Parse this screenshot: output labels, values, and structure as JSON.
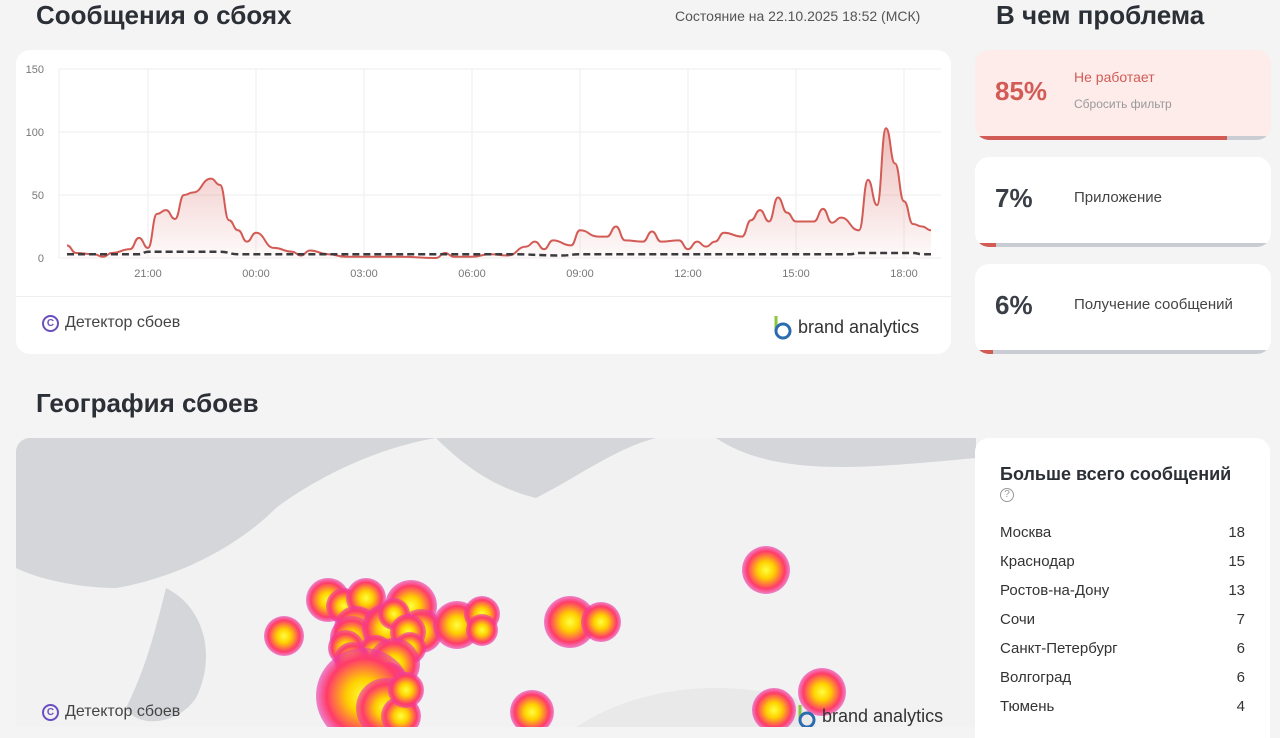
{
  "header": {
    "title": "Сообщения о сбоях",
    "status": "Состояние на 22.10.2025 18:52 (МСК)",
    "problem_title": "В чем проблема"
  },
  "chart_data": {
    "type": "area",
    "ylim": [
      0,
      150
    ],
    "yticks": [
      "0",
      "50",
      "100",
      "150"
    ],
    "xticks": [
      "21:00",
      "00:00",
      "03:00",
      "06:00",
      "09:00",
      "12:00",
      "15:00",
      "18:00"
    ],
    "x_range": [
      "18:45",
      "18:45"
    ],
    "grid": true,
    "series": [
      {
        "style": "solid-area",
        "color": "#d35b55",
        "points": [
          [
            "18:45",
            10
          ],
          [
            "19:00",
            4
          ],
          [
            "19:30",
            3
          ],
          [
            "19:45",
            1
          ],
          [
            "20:00",
            4
          ],
          [
            "20:30",
            7
          ],
          [
            "20:45",
            16
          ],
          [
            "21:00",
            8
          ],
          [
            "21:15",
            35
          ],
          [
            "21:30",
            38
          ],
          [
            "21:45",
            31
          ],
          [
            "22:00",
            50
          ],
          [
            "22:15",
            52
          ],
          [
            "22:45",
            63
          ],
          [
            "23:00",
            58
          ],
          [
            "23:15",
            30
          ],
          [
            "23:30",
            22
          ],
          [
            "23:45",
            13
          ],
          [
            "00:00",
            20
          ],
          [
            "00:30",
            8
          ],
          [
            "01:00",
            5
          ],
          [
            "01:15",
            2
          ],
          [
            "01:30",
            6
          ],
          [
            "02:00",
            3
          ],
          [
            "02:30",
            1
          ],
          [
            "03:00",
            1
          ],
          [
            "04:00",
            1
          ],
          [
            "05:00",
            0
          ],
          [
            "05:15",
            4
          ],
          [
            "05:30",
            1
          ],
          [
            "06:00",
            1
          ],
          [
            "06:30",
            3
          ],
          [
            "07:00",
            2
          ],
          [
            "07:30",
            9
          ],
          [
            "07:45",
            13
          ],
          [
            "08:00",
            7
          ],
          [
            "08:15",
            14
          ],
          [
            "08:45",
            10
          ],
          [
            "09:00",
            22
          ],
          [
            "09:30",
            17
          ],
          [
            "09:45",
            17
          ],
          [
            "10:00",
            25
          ],
          [
            "10:15",
            14
          ],
          [
            "10:45",
            13
          ],
          [
            "11:00",
            21
          ],
          [
            "11:15",
            13
          ],
          [
            "11:45",
            14
          ],
          [
            "12:00",
            7
          ],
          [
            "12:15",
            13
          ],
          [
            "12:30",
            9
          ],
          [
            "12:45",
            13
          ],
          [
            "13:00",
            20
          ],
          [
            "13:30",
            17
          ],
          [
            "13:45",
            30
          ],
          [
            "14:00",
            38
          ],
          [
            "14:15",
            29
          ],
          [
            "14:30",
            48
          ],
          [
            "14:45",
            36
          ],
          [
            "15:00",
            29
          ],
          [
            "15:30",
            29
          ],
          [
            "15:45",
            39
          ],
          [
            "16:00",
            28
          ],
          [
            "16:15",
            32
          ],
          [
            "16:45",
            22
          ],
          [
            "17:00",
            62
          ],
          [
            "17:15",
            42
          ],
          [
            "17:30",
            103
          ],
          [
            "17:45",
            75
          ],
          [
            "18:00",
            45
          ],
          [
            "18:15",
            27
          ],
          [
            "18:30",
            25
          ],
          [
            "18:45",
            22
          ]
        ]
      },
      {
        "style": "dashed",
        "color": "#3a3a3f",
        "points": [
          [
            "18:45",
            3
          ],
          [
            "20:45",
            3
          ],
          [
            "21:00",
            5
          ],
          [
            "23:00",
            5
          ],
          [
            "23:30",
            3
          ],
          [
            "07:00",
            3
          ],
          [
            "08:30",
            2
          ],
          [
            "09:00",
            3
          ],
          [
            "16:30",
            3
          ],
          [
            "16:45",
            4
          ],
          [
            "18:15",
            4
          ],
          [
            "18:30",
            3
          ],
          [
            "18:45",
            3
          ]
        ]
      }
    ]
  },
  "chart_footer": {
    "detector": "Детектор сбоев",
    "brand": "brand analytics"
  },
  "problems": [
    {
      "percent": "85%",
      "value": 85,
      "label": "Не работает",
      "action": "Сбросить фильтр",
      "active": true
    },
    {
      "percent": "7%",
      "value": 7,
      "label": "Приложение"
    },
    {
      "percent": "6%",
      "value": 6,
      "label": "Получение сообщений"
    }
  ],
  "geo": {
    "title": "География сбоев",
    "detector": "Детектор сбоев",
    "brand": "brand analytics"
  },
  "top": {
    "title": "Больше всего сообщений",
    "help_icon": "?",
    "rows": [
      {
        "city": "Москва",
        "count": "18"
      },
      {
        "city": "Краснодар",
        "count": "15"
      },
      {
        "city": "Ростов-на-Дону",
        "count": "13"
      },
      {
        "city": "Сочи",
        "count": "7"
      },
      {
        "city": "Санкт-Петербург",
        "count": "6"
      },
      {
        "city": "Волгоград",
        "count": "6"
      },
      {
        "city": "Тюмень",
        "count": "4"
      }
    ]
  },
  "colors": {
    "accent": "#d35b55",
    "active_bg": "#fdecea"
  }
}
